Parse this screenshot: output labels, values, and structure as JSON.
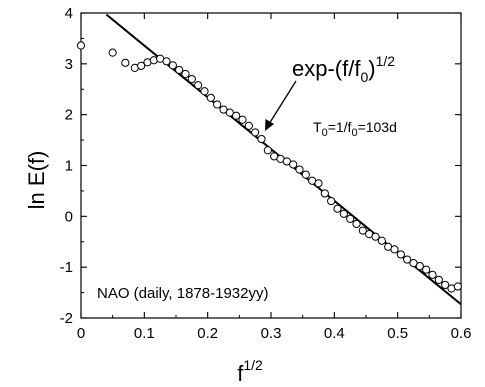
{
  "chart_data": {
    "type": "scatter",
    "title": "",
    "xlabel": {
      "base": "f",
      "sup": "1/2"
    },
    "ylabel": "ln E(f)",
    "xlim": [
      0,
      0.6
    ],
    "ylim": [
      -2,
      4
    ],
    "x_ticks": [
      "0",
      "0.1",
      "0.2",
      "0.3",
      "0.4",
      "0.5",
      "0.6"
    ],
    "y_ticks": [
      "-2",
      "-1",
      "0",
      "1",
      "2",
      "3",
      "4"
    ],
    "grid": false,
    "series": [
      {
        "marker": "open-circle",
        "points": [
          [
            0.0,
            3.36
          ],
          [
            0.05,
            3.22
          ],
          [
            0.07,
            3.02
          ],
          [
            0.085,
            2.92
          ],
          [
            0.095,
            2.96
          ],
          [
            0.105,
            3.03
          ],
          [
            0.115,
            3.07
          ],
          [
            0.125,
            3.1
          ],
          [
            0.135,
            3.05
          ],
          [
            0.145,
            2.97
          ],
          [
            0.155,
            2.88
          ],
          [
            0.165,
            2.8
          ],
          [
            0.175,
            2.7
          ],
          [
            0.185,
            2.58
          ],
          [
            0.195,
            2.46
          ],
          [
            0.205,
            2.33
          ],
          [
            0.215,
            2.2
          ],
          [
            0.225,
            2.1
          ],
          [
            0.235,
            2.04
          ],
          [
            0.245,
            1.98
          ],
          [
            0.255,
            1.9
          ],
          [
            0.265,
            1.78
          ],
          [
            0.275,
            1.65
          ],
          [
            0.285,
            1.52
          ],
          [
            0.295,
            1.3
          ],
          [
            0.305,
            1.18
          ],
          [
            0.315,
            1.13
          ],
          [
            0.325,
            1.08
          ],
          [
            0.335,
            1.02
          ],
          [
            0.345,
            0.92
          ],
          [
            0.355,
            0.82
          ],
          [
            0.365,
            0.7
          ],
          [
            0.375,
            0.65
          ],
          [
            0.385,
            0.45
          ],
          [
            0.395,
            0.3
          ],
          [
            0.405,
            0.15
          ],
          [
            0.415,
            0.05
          ],
          [
            0.425,
            -0.05
          ],
          [
            0.435,
            -0.15
          ],
          [
            0.445,
            -0.28
          ],
          [
            0.455,
            -0.35
          ],
          [
            0.465,
            -0.4
          ],
          [
            0.475,
            -0.48
          ],
          [
            0.485,
            -0.6
          ],
          [
            0.495,
            -0.65
          ],
          [
            0.505,
            -0.75
          ],
          [
            0.515,
            -0.85
          ],
          [
            0.525,
            -0.92
          ],
          [
            0.535,
            -0.98
          ],
          [
            0.545,
            -1.05
          ],
          [
            0.555,
            -1.15
          ],
          [
            0.565,
            -1.25
          ],
          [
            0.575,
            -1.35
          ],
          [
            0.585,
            -1.42
          ],
          [
            0.595,
            -1.38
          ]
        ]
      },
      {
        "type": "line",
        "points": [
          [
            0.04,
            3.97
          ],
          [
            0.6,
            -1.73
          ]
        ]
      }
    ],
    "annotations": {
      "formula": {
        "base": "exp-(f/f",
        "sub": "0",
        "close": ")",
        "sup": "1/2"
      },
      "period": {
        "t": "T",
        "t_sub": "0",
        "mid": "=1/f",
        "f_sub": "0",
        "tail": "=103d"
      },
      "note": "NAO  (daily, 1878-1932yy)"
    }
  }
}
